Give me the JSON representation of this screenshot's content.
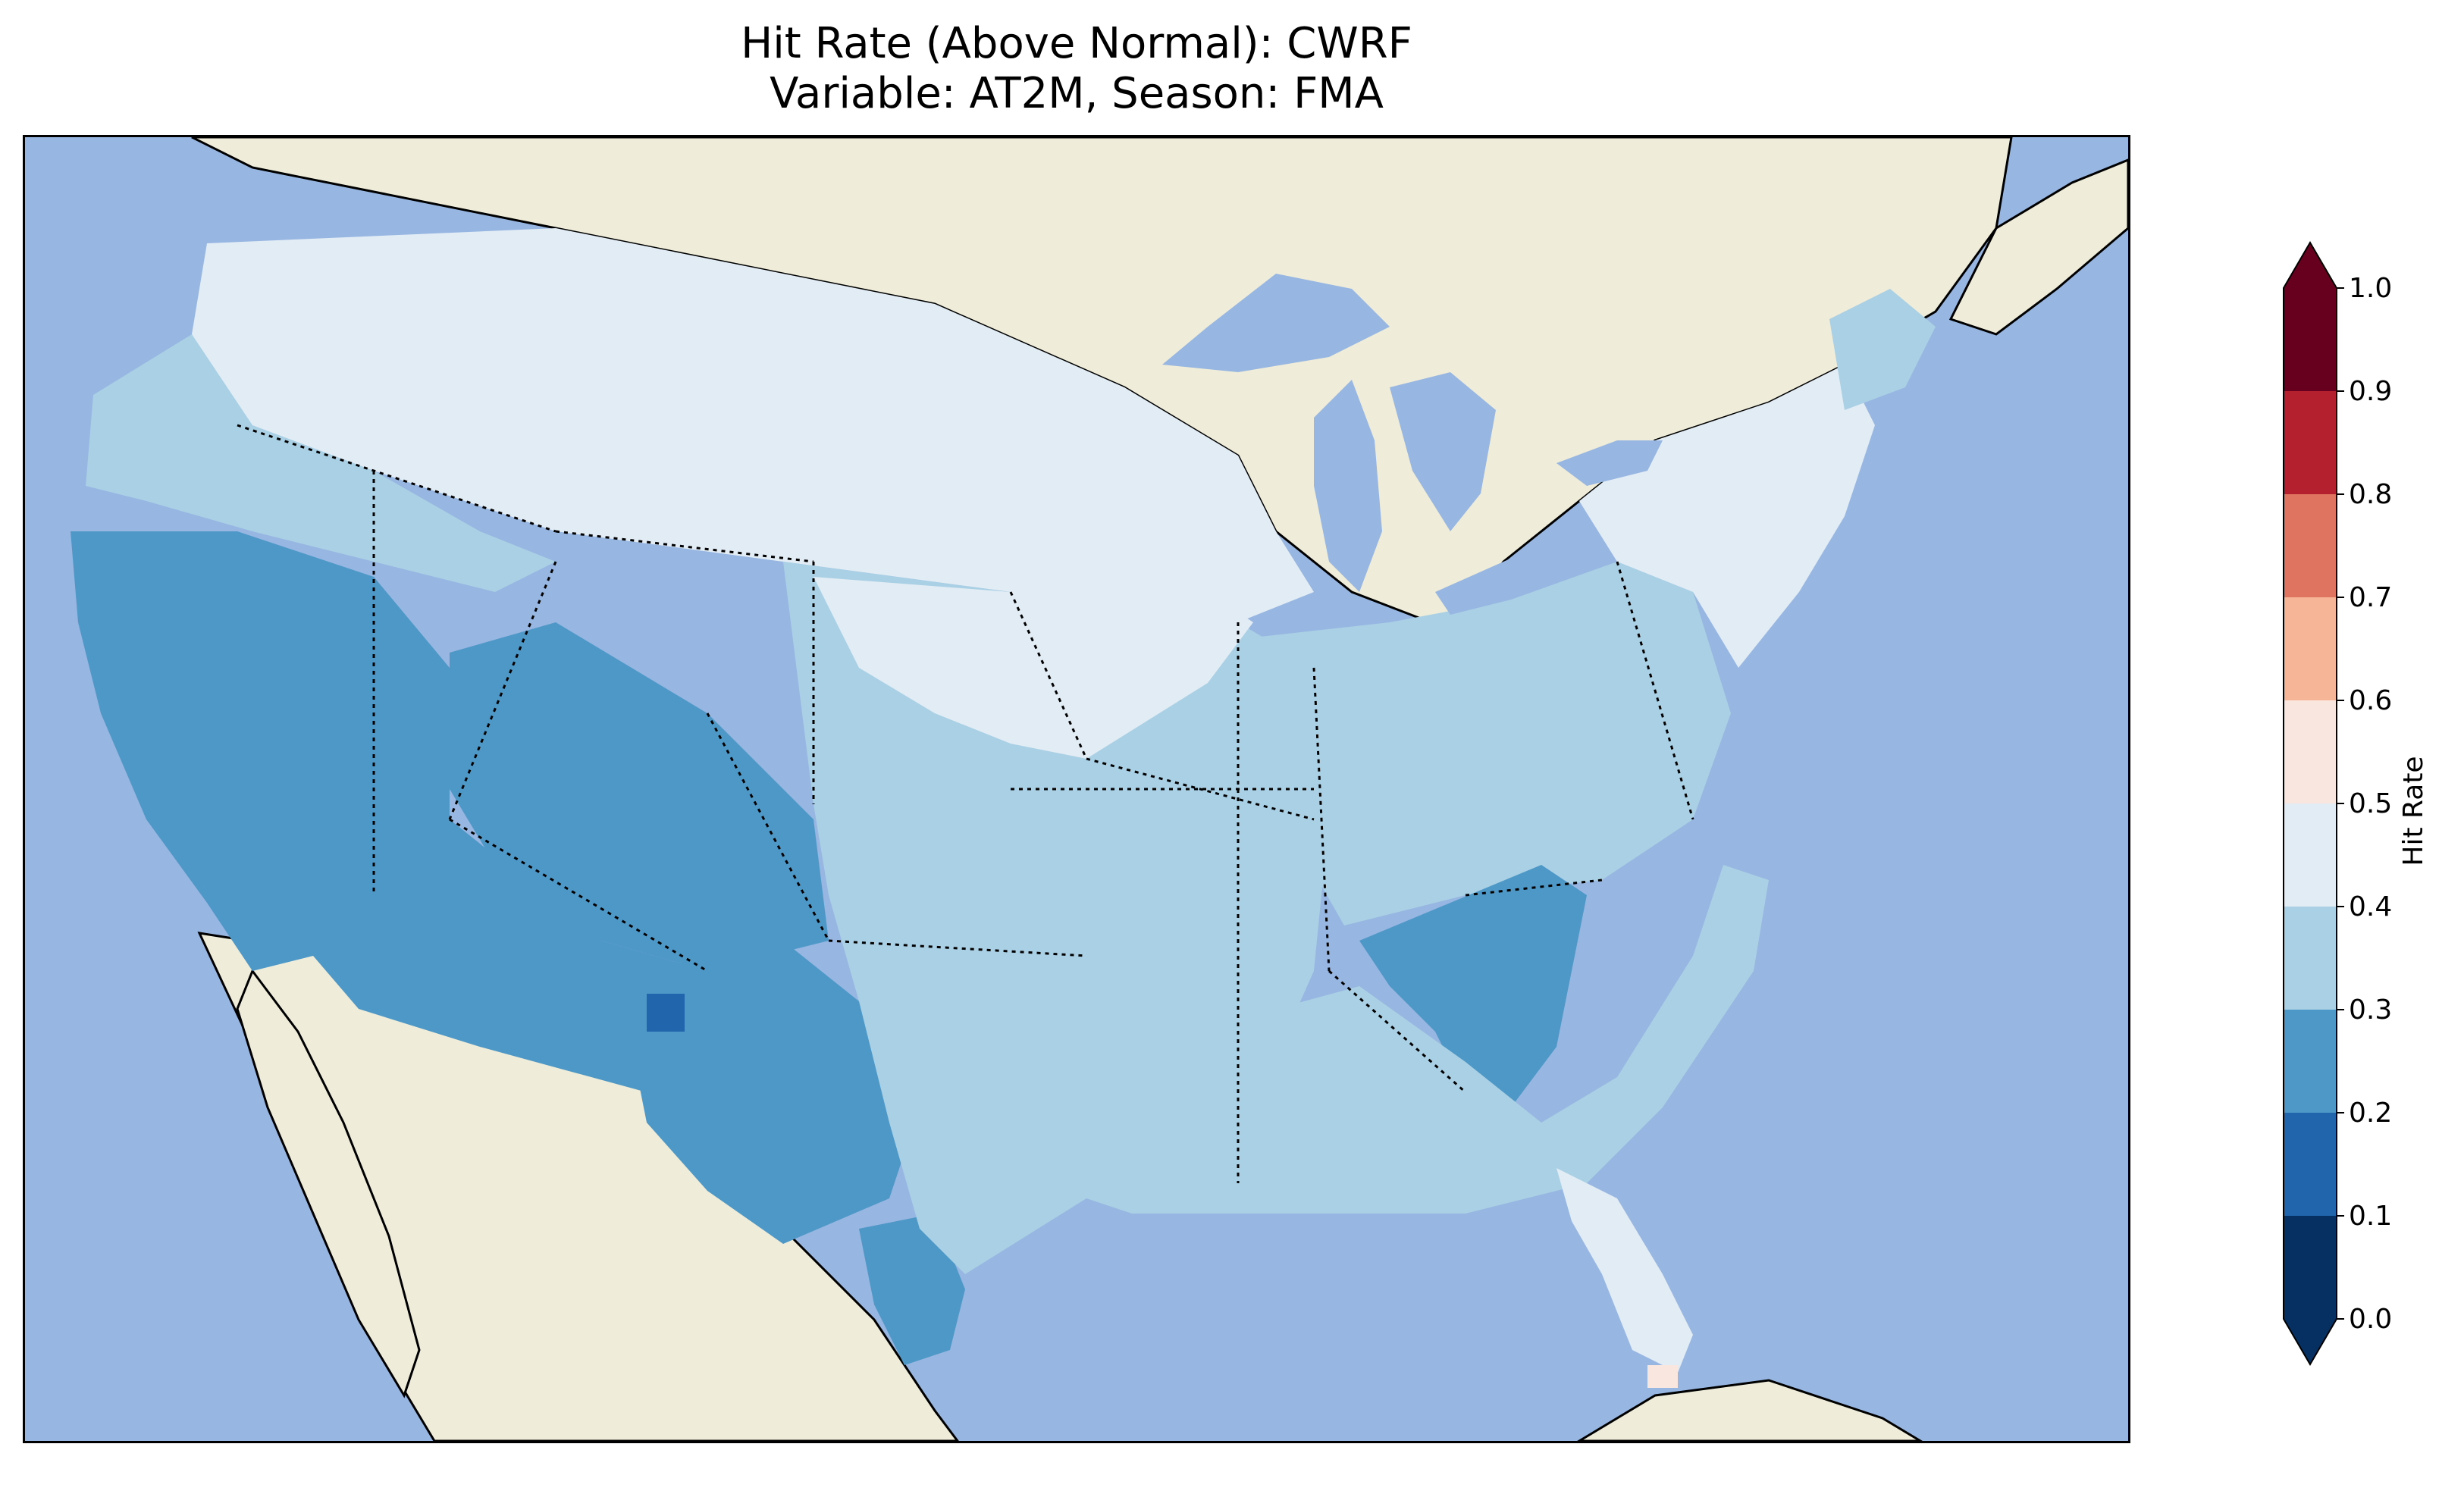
{
  "title": {
    "line1": "Hit Rate (Above Normal): CWRF",
    "line2": "Variable: AT2M, Season: FMA"
  },
  "colors": {
    "ocean": "#97b6e1",
    "land": "#efedd9",
    "lakes": "#97b6e1"
  },
  "colorbar": {
    "label": "Hit Rate",
    "ticks": [
      "0.0",
      "0.1",
      "0.2",
      "0.3",
      "0.4",
      "0.5",
      "0.6",
      "0.7",
      "0.8",
      "0.9",
      "1.0"
    ],
    "bins": [
      {
        "range": [
          0.0,
          0.1
        ],
        "color": "#053061"
      },
      {
        "range": [
          0.1,
          0.2
        ],
        "color": "#2166ac"
      },
      {
        "range": [
          0.2,
          0.3
        ],
        "color": "#4e98c8"
      },
      {
        "range": [
          0.3,
          0.4
        ],
        "color": "#a9d0e4"
      },
      {
        "range": [
          0.4,
          0.5
        ],
        "color": "#e1ecf4"
      },
      {
        "range": [
          0.5,
          0.6
        ],
        "color": "#f8e6df"
      },
      {
        "range": [
          0.6,
          0.7
        ],
        "color": "#f5b596"
      },
      {
        "range": [
          0.7,
          0.8
        ],
        "color": "#df7560"
      },
      {
        "range": [
          0.8,
          0.9
        ],
        "color": "#b4202e"
      },
      {
        "range": [
          0.9,
          1.0
        ],
        "color": "#67001f"
      }
    ],
    "extend": "both"
  },
  "regions": {
    "northwest_coast": 0.35,
    "northern_tier": 0.45,
    "great_basin_california": 0.25,
    "southwest_desert": 0.25,
    "colorado_plateau": 0.25,
    "new_mexico_spot": 0.15,
    "west_texas": 0.25,
    "south_texas": 0.25,
    "central_plains": 0.35,
    "upper_midwest": 0.45,
    "ohio_valley": 0.35,
    "tennessee_georgia": 0.25,
    "southeast": 0.35,
    "florida": 0.45,
    "florida_keys": 0.55,
    "northeast": 0.45,
    "maine": 0.35
  }
}
